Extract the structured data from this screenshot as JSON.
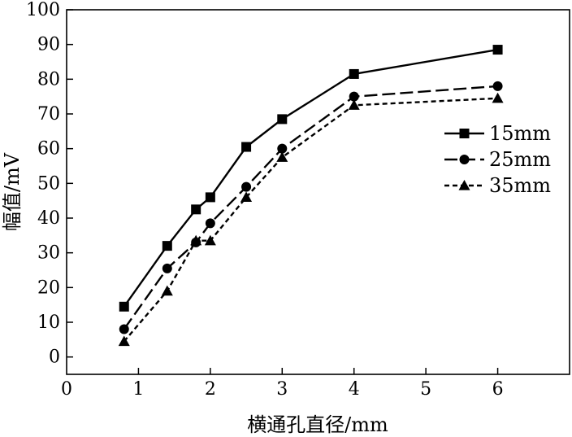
{
  "chart_data": {
    "type": "line",
    "title": "",
    "xlabel": "横通孔直径/mm",
    "ylabel": "幅值/mV",
    "xlim": [
      0,
      7
    ],
    "ylim": [
      -5,
      100
    ],
    "x_ticks": [
      "0",
      "1",
      "2",
      "3",
      "4",
      "5",
      "6"
    ],
    "y_ticks": [
      "0",
      "10",
      "20",
      "30",
      "40",
      "50",
      "60",
      "70",
      "80",
      "90",
      "100"
    ],
    "grid": false,
    "legend_position": "right",
    "x": [
      0.8,
      1.4,
      1.8,
      2.0,
      2.5,
      3.0,
      4.0,
      6.0
    ],
    "series": [
      {
        "name": "15mm",
        "marker": "square",
        "dash": "solid",
        "values": [
          14.5,
          32,
          42.5,
          46,
          60.5,
          68.5,
          81.5,
          88.5
        ]
      },
      {
        "name": "25mm",
        "marker": "circle",
        "dash": "dashed",
        "values": [
          8,
          25.5,
          33,
          38.5,
          49,
          60,
          75,
          78
        ]
      },
      {
        "name": "35mm",
        "marker": "triangle",
        "dash": "dotted",
        "values": [
          4.5,
          19,
          33.5,
          33.5,
          46,
          57.5,
          72.5,
          74.5
        ]
      }
    ]
  }
}
